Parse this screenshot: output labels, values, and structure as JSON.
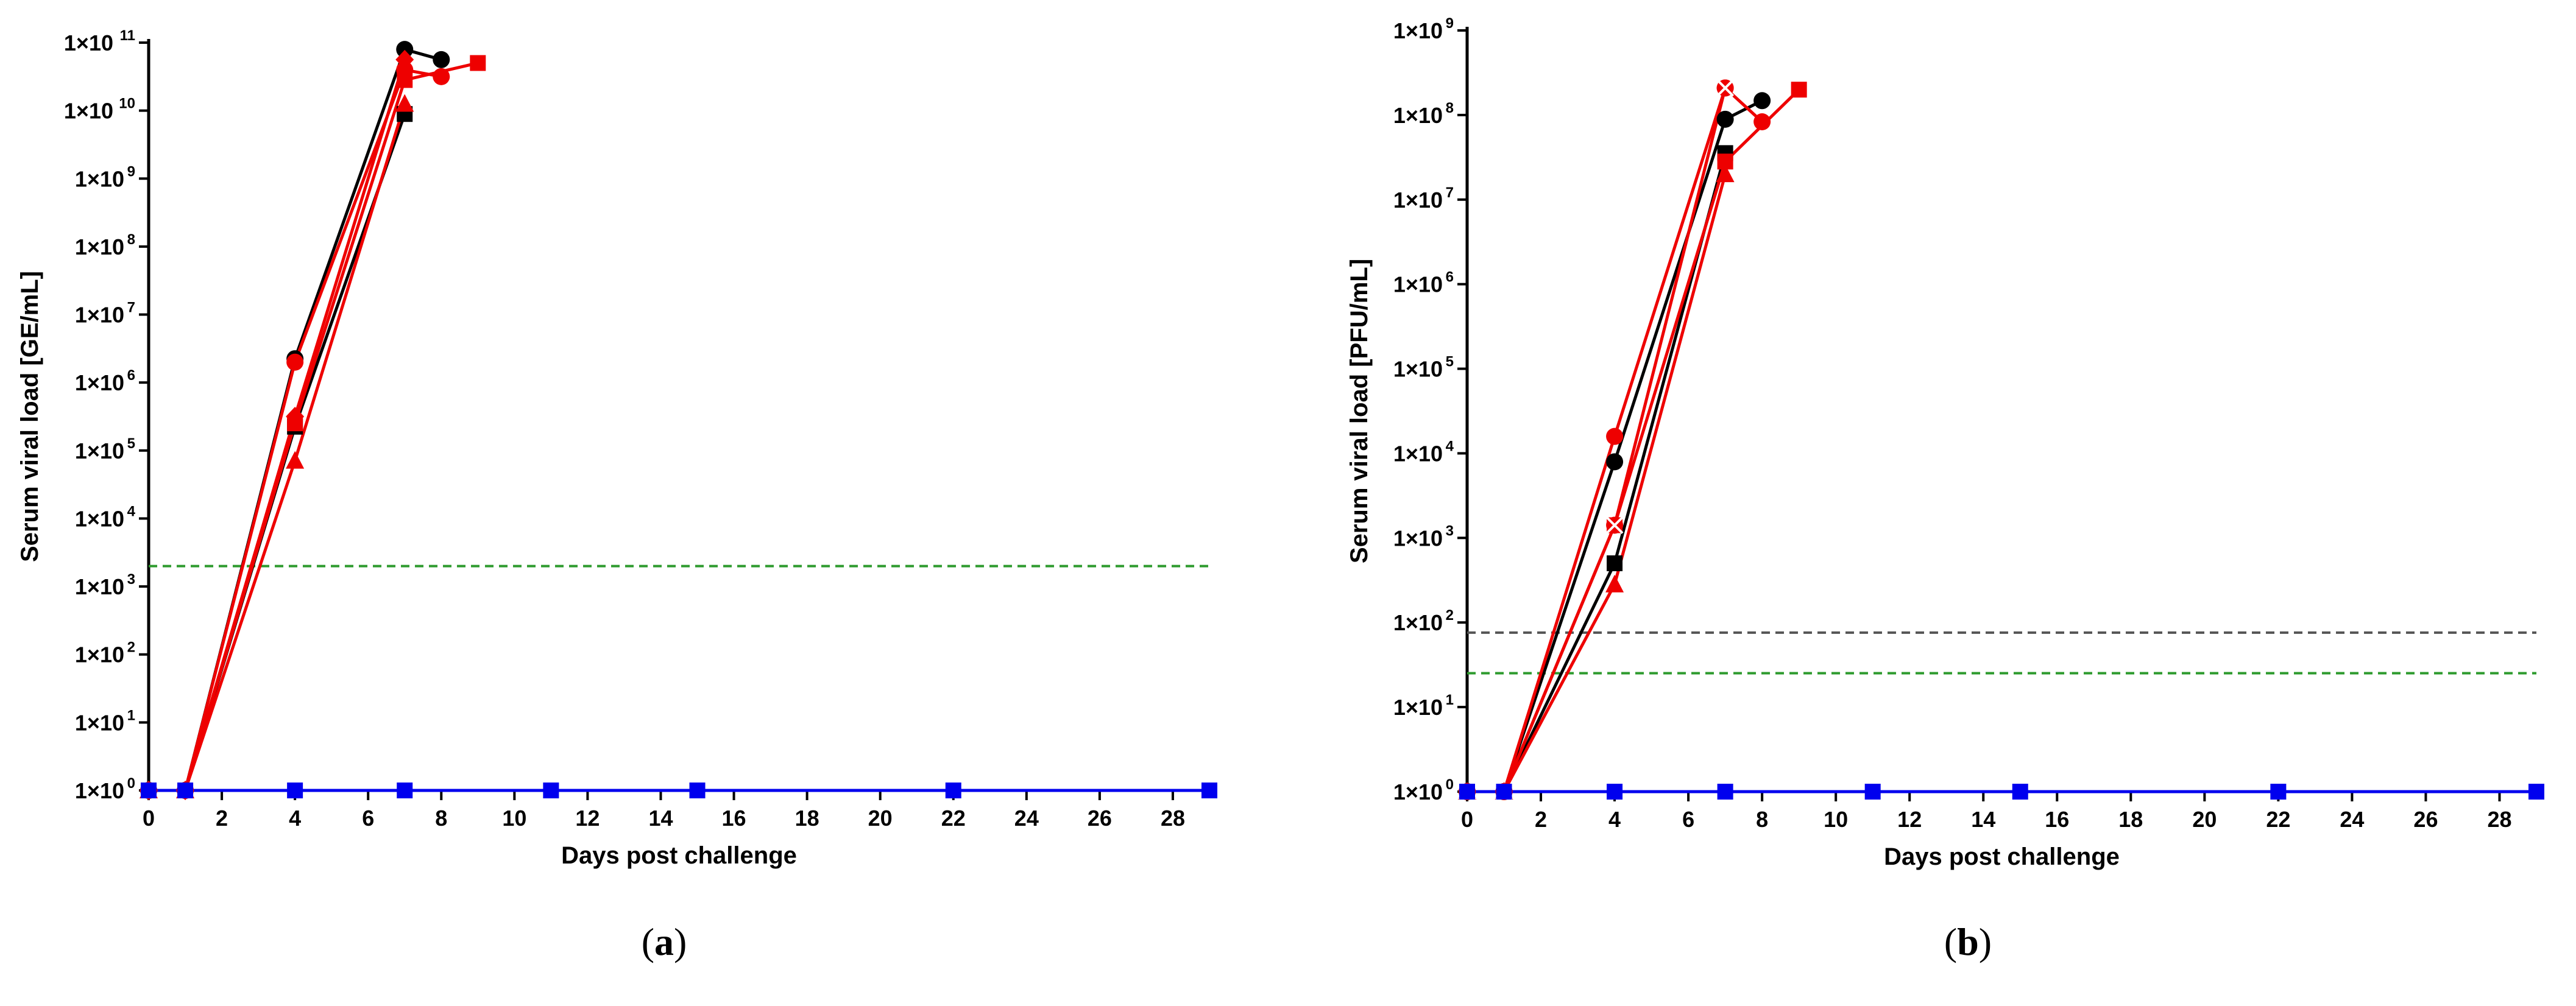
{
  "figure": {
    "captions": [
      {
        "label": "a"
      },
      {
        "label": "b"
      }
    ]
  },
  "chart_data": [
    {
      "type": "line",
      "panel": "a",
      "xlabel": "Days post challenge",
      "ylabel": "Serum viral load [GE/mL]",
      "y_scale": "log10",
      "xlim": [
        0,
        29
      ],
      "ylim_exp": [
        0,
        11
      ],
      "x_ticks": [
        0,
        2,
        4,
        6,
        8,
        10,
        12,
        14,
        16,
        18,
        20,
        22,
        24,
        26,
        28
      ],
      "y_tick_labels": [
        "1×10",
        "1×10",
        "1×10",
        "1×10",
        "1×10",
        "1×10",
        "1×10",
        "1×10",
        "1×10",
        "1×10",
        "1×10",
        "1×10"
      ],
      "y_tick_exps": [
        "0",
        "1",
        "2",
        "3",
        "4",
        "5",
        "6",
        "7",
        "8",
        "9",
        "10",
        "11"
      ],
      "reference_lines": [
        {
          "value_exp": 3.3,
          "color": "#2e9b2e"
        }
      ],
      "series": [
        {
          "name": "black circle",
          "color": "#000000",
          "marker": "circle",
          "x": [
            0,
            1,
            4,
            7,
            8
          ],
          "y_exp": [
            0,
            0,
            6.35,
            10.9,
            10.75
          ]
        },
        {
          "name": "black square",
          "color": "#000000",
          "marker": "square",
          "x": [
            0,
            1,
            4,
            7
          ],
          "y_exp": [
            0,
            0,
            5.35,
            9.95
          ]
        },
        {
          "name": "red circle",
          "color": "#ee0000",
          "marker": "circle",
          "x": [
            0,
            1,
            4,
            7,
            8
          ],
          "y_exp": [
            0,
            0,
            6.3,
            10.6,
            10.5
          ]
        },
        {
          "name": "red square",
          "color": "#ee0000",
          "marker": "square",
          "x": [
            0,
            1,
            4,
            7,
            9
          ],
          "y_exp": [
            0,
            0,
            5.4,
            10.45,
            10.7
          ]
        },
        {
          "name": "red triangle",
          "color": "#ee0000",
          "marker": "triangle",
          "x": [
            0,
            1,
            4,
            7
          ],
          "y_exp": [
            0,
            0,
            4.85,
            10.1
          ]
        },
        {
          "name": "red diamond",
          "color": "#ee0000",
          "marker": "diamond",
          "x": [
            0,
            1,
            4,
            7
          ],
          "y_exp": [
            0,
            0,
            5.5,
            10.75
          ]
        },
        {
          "name": "blue square",
          "color": "#0000ee",
          "marker": "square",
          "x": [
            0,
            1,
            4,
            7,
            11,
            15,
            22,
            29
          ],
          "y_exp": [
            0,
            0,
            0,
            0,
            0,
            0,
            0,
            0
          ]
        }
      ]
    },
    {
      "type": "line",
      "panel": "b",
      "xlabel": "Days post challenge",
      "ylabel": "Serum viral load [PFU/mL]",
      "y_scale": "log10",
      "xlim": [
        0,
        29
      ],
      "ylim_exp": [
        0,
        9
      ],
      "x_ticks": [
        0,
        2,
        4,
        6,
        8,
        10,
        12,
        14,
        16,
        18,
        20,
        22,
        24,
        26,
        28
      ],
      "y_tick_labels": [
        "1×10",
        "1×10",
        "1×10",
        "1×10",
        "1×10",
        "1×10",
        "1×10",
        "1×10",
        "1×10",
        "1×10"
      ],
      "y_tick_exps": [
        "0",
        "1",
        "2",
        "3",
        "4",
        "5",
        "6",
        "7",
        "8",
        "9"
      ],
      "reference_lines": [
        {
          "value_exp": 1.88,
          "color": "#555555"
        },
        {
          "value_exp": 1.4,
          "color": "#2e9b2e"
        }
      ],
      "series": [
        {
          "name": "black circle",
          "color": "#000000",
          "marker": "circle",
          "x": [
            0,
            1,
            4,
            7,
            8
          ],
          "y_exp": [
            0,
            0,
            3.9,
            7.95,
            8.17
          ]
        },
        {
          "name": "black square",
          "color": "#000000",
          "marker": "square",
          "x": [
            0,
            1,
            4,
            7
          ],
          "y_exp": [
            0,
            0,
            2.7,
            7.55
          ]
        },
        {
          "name": "red circle",
          "color": "#ee0000",
          "marker": "circle",
          "x": [
            0,
            1,
            4,
            7,
            8
          ],
          "y_exp": [
            0,
            0,
            4.2,
            8.32,
            7.92
          ]
        },
        {
          "name": "red square",
          "color": "#ee0000",
          "marker": "square",
          "x": [
            0,
            1,
            4,
            7,
            9
          ],
          "y_exp": [
            0,
            0,
            3.15,
            7.45,
            8.3
          ]
        },
        {
          "name": "red triangle",
          "color": "#ee0000",
          "marker": "triangle",
          "x": [
            0,
            1,
            4,
            7
          ],
          "y_exp": [
            0,
            0,
            2.45,
            7.3
          ]
        },
        {
          "name": "red cross",
          "color": "#ee0000",
          "marker": "cross",
          "x": [
            0,
            1,
            4,
            7
          ],
          "y_exp": [
            0,
            0,
            3.15,
            8.32
          ]
        },
        {
          "name": "blue square",
          "color": "#0000ee",
          "marker": "square",
          "x": [
            0,
            1,
            4,
            7,
            11,
            15,
            22,
            29
          ],
          "y_exp": [
            0,
            0,
            0,
            0,
            0,
            0,
            0,
            0
          ]
        }
      ]
    }
  ]
}
